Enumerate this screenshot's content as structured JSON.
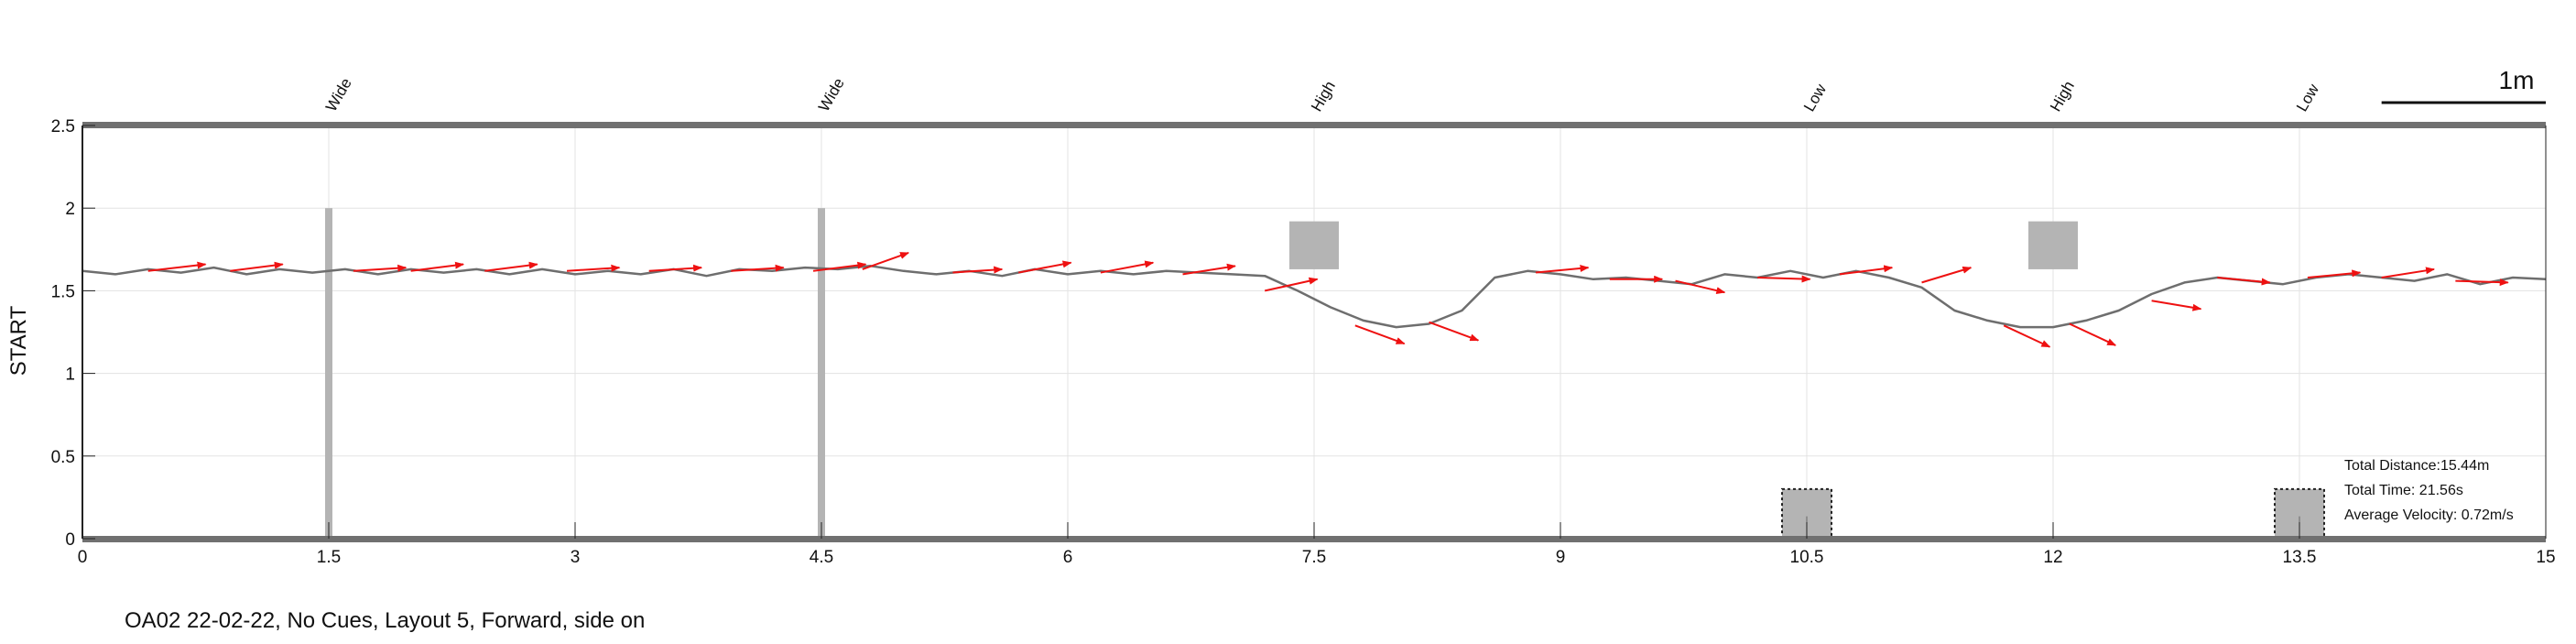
{
  "chart_data": {
    "type": "line",
    "ylabel": "START",
    "xlim": [
      0,
      15
    ],
    "ylim": [
      0,
      2.5
    ],
    "x_ticks": [
      0,
      1.5,
      3,
      4.5,
      6,
      7.5,
      9,
      10.5,
      12,
      13.5,
      15
    ],
    "x_tick_labels": [
      "0",
      "1.5",
      "3",
      "4.5",
      "6",
      "7.5",
      "9",
      "10.5",
      "12",
      "13.5",
      "15"
    ],
    "y_ticks": [
      0,
      0.5,
      1,
      1.5,
      2,
      2.5
    ],
    "y_tick_labels": [
      "0",
      "0.5",
      "1",
      "1.5",
      "2",
      "2.5"
    ],
    "grid": true,
    "path": {
      "x": [
        0,
        0.2,
        0.4,
        0.6,
        0.8,
        1.0,
        1.2,
        1.4,
        1.6,
        1.8,
        2.0,
        2.2,
        2.4,
        2.6,
        2.8,
        3.0,
        3.2,
        3.4,
        3.6,
        3.8,
        4.0,
        4.2,
        4.4,
        4.6,
        4.8,
        5.0,
        5.2,
        5.4,
        5.6,
        5.8,
        6.0,
        6.2,
        6.4,
        6.6,
        6.8,
        7.0,
        7.2,
        7.4,
        7.6,
        7.8,
        8.0,
        8.2,
        8.4,
        8.6,
        8.8,
        9.0,
        9.2,
        9.4,
        9.6,
        9.8,
        10.0,
        10.2,
        10.4,
        10.6,
        10.8,
        11.0,
        11.2,
        11.4,
        11.6,
        11.8,
        12.0,
        12.2,
        12.4,
        12.6,
        12.8,
        13.0,
        13.2,
        13.4,
        13.6,
        13.8,
        14.0,
        14.2,
        14.4,
        14.6,
        14.8,
        15.0
      ],
      "y": [
        1.62,
        1.6,
        1.63,
        1.61,
        1.64,
        1.6,
        1.63,
        1.61,
        1.63,
        1.6,
        1.63,
        1.61,
        1.63,
        1.6,
        1.63,
        1.6,
        1.62,
        1.6,
        1.63,
        1.59,
        1.63,
        1.62,
        1.64,
        1.63,
        1.65,
        1.62,
        1.6,
        1.62,
        1.59,
        1.63,
        1.6,
        1.62,
        1.6,
        1.62,
        1.61,
        1.6,
        1.59,
        1.5,
        1.4,
        1.32,
        1.28,
        1.3,
        1.38,
        1.58,
        1.62,
        1.6,
        1.57,
        1.58,
        1.56,
        1.54,
        1.6,
        1.58,
        1.62,
        1.58,
        1.62,
        1.58,
        1.52,
        1.38,
        1.32,
        1.28,
        1.28,
        1.32,
        1.38,
        1.48,
        1.55,
        1.58,
        1.56,
        1.54,
        1.58,
        1.6,
        1.58,
        1.56,
        1.6,
        1.54,
        1.58,
        1.57
      ]
    },
    "direction_arrows": [
      {
        "x": 0.4,
        "y": 1.62,
        "dx": 0.35,
        "dy": 0.04
      },
      {
        "x": 0.9,
        "y": 1.62,
        "dx": 0.32,
        "dy": 0.04
      },
      {
        "x": 1.65,
        "y": 1.62,
        "dx": 0.32,
        "dy": 0.02
      },
      {
        "x": 2.0,
        "y": 1.62,
        "dx": 0.32,
        "dy": 0.04
      },
      {
        "x": 2.45,
        "y": 1.62,
        "dx": 0.32,
        "dy": 0.04
      },
      {
        "x": 2.95,
        "y": 1.62,
        "dx": 0.32,
        "dy": 0.02
      },
      {
        "x": 3.45,
        "y": 1.62,
        "dx": 0.32,
        "dy": 0.02
      },
      {
        "x": 3.95,
        "y": 1.62,
        "dx": 0.32,
        "dy": 0.02
      },
      {
        "x": 4.45,
        "y": 1.62,
        "dx": 0.32,
        "dy": 0.04
      },
      {
        "x": 4.75,
        "y": 1.63,
        "dx": 0.28,
        "dy": 0.1
      },
      {
        "x": 5.3,
        "y": 1.61,
        "dx": 0.3,
        "dy": 0.02
      },
      {
        "x": 5.7,
        "y": 1.61,
        "dx": 0.32,
        "dy": 0.06
      },
      {
        "x": 6.2,
        "y": 1.61,
        "dx": 0.32,
        "dy": 0.06
      },
      {
        "x": 6.7,
        "y": 1.6,
        "dx": 0.32,
        "dy": 0.05
      },
      {
        "x": 7.2,
        "y": 1.5,
        "dx": 0.32,
        "dy": 0.07
      },
      {
        "x": 7.75,
        "y": 1.29,
        "dx": 0.3,
        "dy": -0.11
      },
      {
        "x": 8.2,
        "y": 1.31,
        "dx": 0.3,
        "dy": -0.11
      },
      {
        "x": 8.85,
        "y": 1.61,
        "dx": 0.32,
        "dy": 0.03
      },
      {
        "x": 9.3,
        "y": 1.57,
        "dx": 0.32,
        "dy": 0.0
      },
      {
        "x": 9.7,
        "y": 1.56,
        "dx": 0.3,
        "dy": -0.07
      },
      {
        "x": 10.2,
        "y": 1.58,
        "dx": 0.32,
        "dy": -0.01
      },
      {
        "x": 10.7,
        "y": 1.6,
        "dx": 0.32,
        "dy": 0.04
      },
      {
        "x": 11.2,
        "y": 1.55,
        "dx": 0.3,
        "dy": 0.09
      },
      {
        "x": 11.7,
        "y": 1.29,
        "dx": 0.28,
        "dy": -0.13
      },
      {
        "x": 12.1,
        "y": 1.3,
        "dx": 0.28,
        "dy": -0.13
      },
      {
        "x": 12.6,
        "y": 1.44,
        "dx": 0.3,
        "dy": -0.05
      },
      {
        "x": 13.0,
        "y": 1.58,
        "dx": 0.32,
        "dy": -0.03
      },
      {
        "x": 13.55,
        "y": 1.58,
        "dx": 0.32,
        "dy": 0.03
      },
      {
        "x": 14.0,
        "y": 1.58,
        "dx": 0.32,
        "dy": 0.05
      },
      {
        "x": 14.45,
        "y": 1.56,
        "dx": 0.32,
        "dy": -0.01
      }
    ],
    "obstacles": [
      {
        "label": "Wide",
        "x": 1.5
      },
      {
        "label": "Wide",
        "x": 4.5
      },
      {
        "label": "High",
        "x": 7.5
      },
      {
        "label": "Low",
        "x": 10.5
      },
      {
        "label": "High",
        "x": 12.0
      },
      {
        "label": "Low",
        "x": 13.5
      }
    ],
    "poles": [
      {
        "x": 1.5,
        "ymax": 2.0
      },
      {
        "x": 4.5,
        "ymax": 2.0
      }
    ],
    "high_boxes": [
      {
        "x": 7.5,
        "y0": 1.63,
        "y1": 1.92
      },
      {
        "x": 12.0,
        "y0": 1.63,
        "y1": 1.92
      }
    ],
    "low_boxes": [
      {
        "x": 10.5,
        "y0": 0.0,
        "y1": 0.3
      },
      {
        "x": 13.5,
        "y0": 0.0,
        "y1": 0.3
      }
    ],
    "scale_bar": {
      "label": "1m",
      "length": 1
    },
    "stats": {
      "total_distance": "Total Distance:15.44m",
      "total_time": "Total Time: 21.56s",
      "average_velocity": "Average Velocity: 0.72m/s"
    }
  },
  "caption": "OA02 22-02-22, No Cues, Layout 5, Forward, side on",
  "colors": {
    "path": "#6e6e6e",
    "arrow": "#ee1111",
    "obstacle": "#b4b4b4",
    "grid": "#e3e3e3",
    "frame": "#707070"
  }
}
